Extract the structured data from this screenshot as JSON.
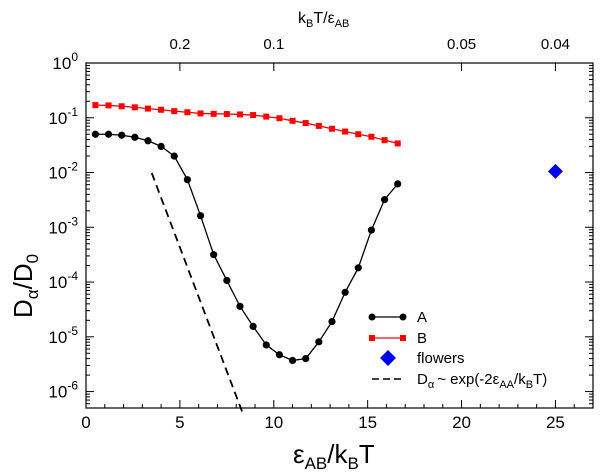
{
  "chart_data": {
    "type": "line",
    "xlabel": {
      "main": "ε",
      "sub": "AB",
      "rest": "/k",
      "sub2": "B",
      "tail": "T"
    },
    "ylabel": {
      "main": "D",
      "sub": "α",
      "rest": "/D",
      "sub2": "0"
    },
    "top_xlabel": {
      "a": "k",
      "a_sub": "B",
      "b": "T/ε",
      "b_sub": "AB"
    },
    "xlim": [
      0,
      27
    ],
    "ylim_log10": [
      -6.3,
      0
    ],
    "x_ticks": [
      {
        "v": 0,
        "label": "0"
      },
      {
        "v": 5,
        "label": "5"
      },
      {
        "v": 10,
        "label": "10"
      },
      {
        "v": 15,
        "label": "15"
      },
      {
        "v": 20,
        "label": "20"
      },
      {
        "v": 25,
        "label": "25"
      }
    ],
    "y_ticks": [
      {
        "exp": 0,
        "base": "10",
        "sup": "0"
      },
      {
        "exp": -1,
        "base": "10",
        "sup": "-1"
      },
      {
        "exp": -2,
        "base": "10",
        "sup": "-2"
      },
      {
        "exp": -3,
        "base": "10",
        "sup": "-3"
      },
      {
        "exp": -4,
        "base": "10",
        "sup": "-4"
      },
      {
        "exp": -5,
        "base": "10",
        "sup": "-5"
      },
      {
        "exp": -6,
        "base": "10",
        "sup": "-6"
      }
    ],
    "top_ticks": [
      {
        "x": 5.0,
        "label": "0.2"
      },
      {
        "x": 10.0,
        "label": "0.1"
      },
      {
        "x": 20.0,
        "label": "0.05"
      },
      {
        "x": 25.0,
        "label": "0.04"
      }
    ],
    "series": [
      {
        "name": "A",
        "color": "#000000",
        "marker": "circle",
        "x": [
          0.5,
          1.2,
          1.9,
          2.6,
          3.3,
          4.0,
          4.7,
          5.4,
          6.1,
          6.8,
          7.5,
          8.2,
          8.9,
          9.6,
          10.3,
          11.0,
          11.7,
          12.4,
          13.1,
          13.8,
          14.5,
          15.2,
          15.9,
          16.6
        ],
        "y": [
          0.05,
          0.05,
          0.048,
          0.044,
          0.038,
          0.03,
          0.02,
          0.0074,
          0.00163,
          0.000316,
          0.000107,
          3.6e-05,
          1.55e-05,
          7.1e-06,
          4.7e-06,
          3.7e-06,
          4e-06,
          8.1e-06,
          1.9e-05,
          6.5e-05,
          0.000182,
          0.00089,
          0.0032,
          0.0062
        ]
      },
      {
        "name": "B",
        "color": "#ff0000",
        "marker": "square",
        "x": [
          0.5,
          1.2,
          1.9,
          2.6,
          3.3,
          4.0,
          4.7,
          5.4,
          6.1,
          6.8,
          7.5,
          8.2,
          8.9,
          9.6,
          10.3,
          11.0,
          11.7,
          12.4,
          13.1,
          13.8,
          14.5,
          15.2,
          15.9,
          16.6
        ],
        "y": [
          0.17,
          0.168,
          0.162,
          0.155,
          0.147,
          0.14,
          0.132,
          0.126,
          0.12,
          0.118,
          0.117,
          0.115,
          0.112,
          0.105,
          0.098,
          0.088,
          0.08,
          0.071,
          0.063,
          0.056,
          0.05,
          0.045,
          0.039,
          0.034
        ]
      },
      {
        "name": "flowers",
        "color": "#0000ee",
        "marker": "diamond",
        "x": [
          25.0
        ],
        "y": [
          0.0105
        ]
      },
      {
        "name": "D_α ~ exp(-2ε_AA/k_BT)",
        "color": "#000000",
        "marker": "none",
        "dashed": true,
        "x": [
          3.5,
          8.4
        ],
        "y": [
          0.0098,
          3.6e-07
        ]
      }
    ],
    "legend": {
      "placement": "bottom-right",
      "entries": [
        {
          "series": "A",
          "text": "A"
        },
        {
          "series": "B",
          "text": "B"
        },
        {
          "series": "flowers",
          "text": "flowers"
        },
        {
          "series": "D_α ~ exp(-2ε_AA/k_BT)",
          "text_main": "D",
          "text_sub": "α",
          "text_mid": "~ exp(-2ε",
          "text_sub2": "AA",
          "text_mid2": "/k",
          "text_sub3": "B",
          "text_end": "T)"
        }
      ]
    },
    "grid": false
  }
}
